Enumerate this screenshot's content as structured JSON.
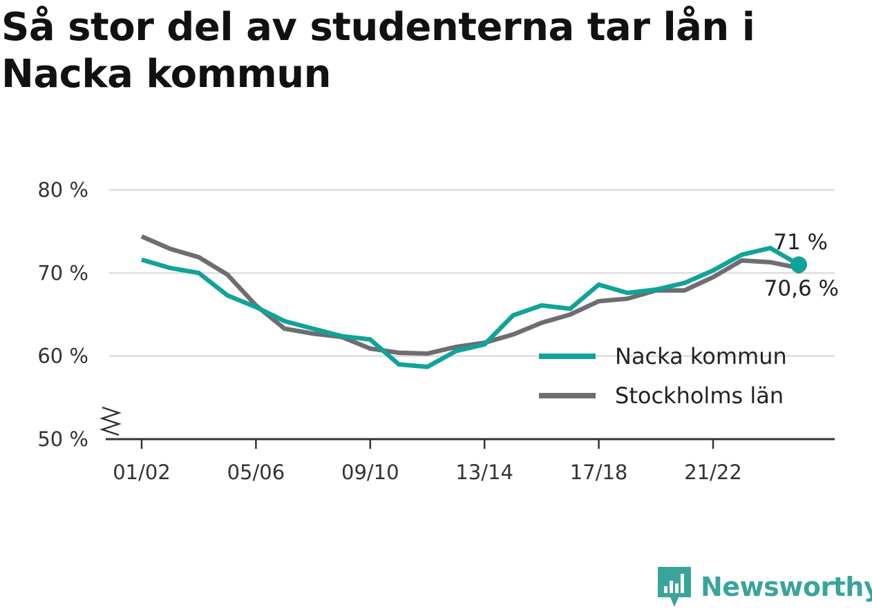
{
  "title": "Så stor del av studenterna tar lån i Nacka kommun",
  "brand": {
    "name": "Newsworthy",
    "color": "#3aa49a"
  },
  "chart_data": {
    "type": "line",
    "title": "Så stor del av studenterna tar lån i Nacka kommun",
    "xlabel": "",
    "ylabel": "",
    "ylim": [
      50,
      80
    ],
    "y_ticks": [
      "80 %",
      "70 %",
      "60 %",
      "50 %"
    ],
    "y_tick_values": [
      80,
      70,
      60,
      50
    ],
    "y_axis_break": true,
    "x": [
      "01/02",
      "02/03",
      "03/04",
      "04/05",
      "05/06",
      "06/07",
      "07/08",
      "08/09",
      "09/10",
      "10/11",
      "11/12",
      "12/13",
      "13/14",
      "14/15",
      "15/16",
      "16/17",
      "17/18",
      "18/19",
      "19/20",
      "20/21",
      "21/22",
      "22/23",
      "23/24",
      "24/25"
    ],
    "x_ticks": [
      "01/02",
      "05/06",
      "09/10",
      "13/14",
      "17/18",
      "21/22"
    ],
    "grid": true,
    "legend_position": "right",
    "series": [
      {
        "name": "Nacka kommun",
        "color": "#10a399",
        "values": [
          71.6,
          70.6,
          70.0,
          67.3,
          65.9,
          64.2,
          63.3,
          62.4,
          62.0,
          59.0,
          58.7,
          60.6,
          61.4,
          64.9,
          66.1,
          65.7,
          68.6,
          67.6,
          68.0,
          68.8,
          70.3,
          72.2,
          73.0,
          71.0
        ],
        "end_label": "71 %"
      },
      {
        "name": "Stockholms län",
        "color": "#6d6d72",
        "values": [
          74.4,
          72.9,
          71.9,
          69.8,
          66.1,
          63.3,
          62.7,
          62.3,
          60.9,
          60.4,
          60.3,
          61.1,
          61.6,
          62.6,
          64.0,
          65.0,
          66.6,
          66.9,
          67.9,
          67.9,
          69.5,
          71.5,
          71.3,
          70.6
        ],
        "end_label": "70,6 %"
      }
    ]
  }
}
